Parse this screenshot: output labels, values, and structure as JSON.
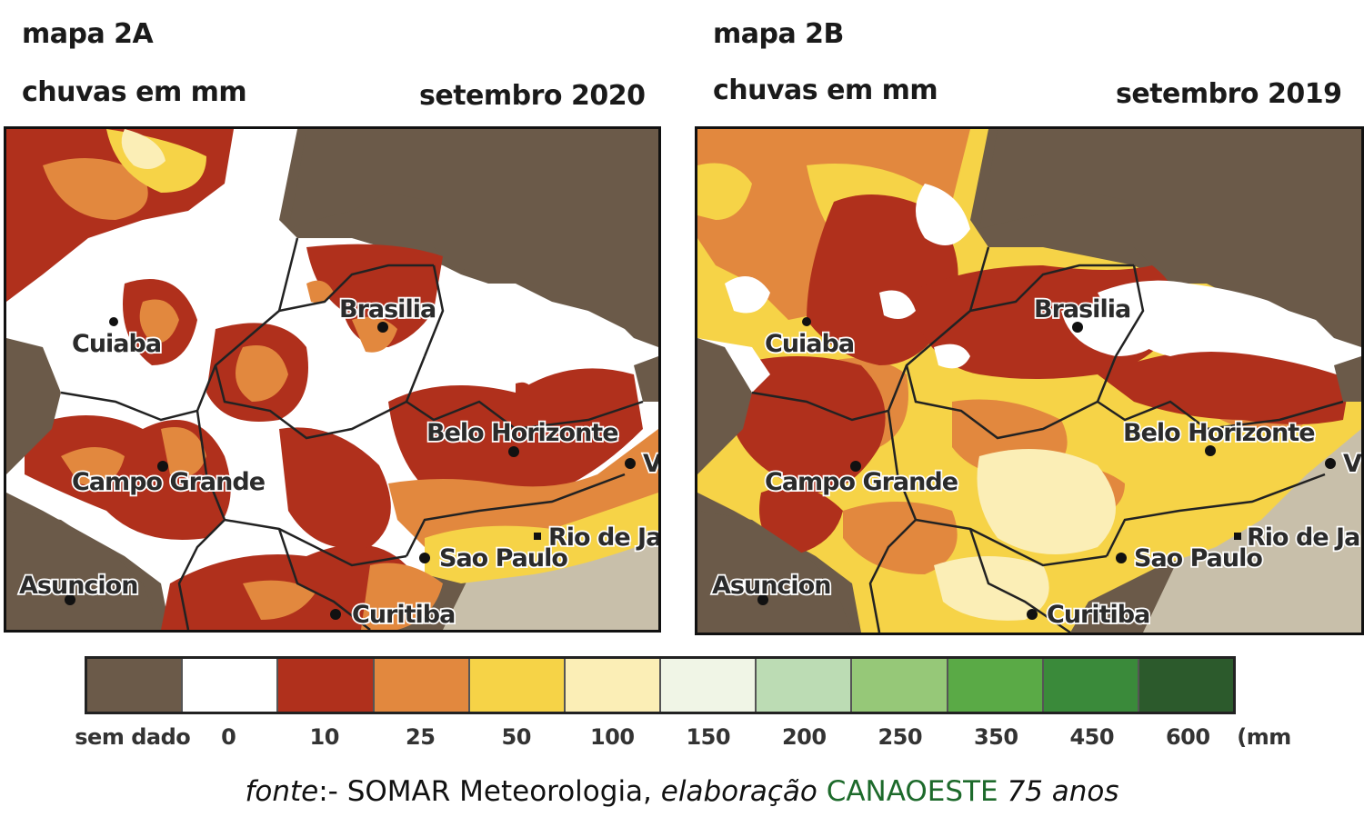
{
  "map_a": {
    "title": "mapa 2A",
    "subtitle": "chuvas em mm",
    "period": "setembro 2020"
  },
  "map_b": {
    "title": "mapa 2B",
    "subtitle": "chuvas em mm",
    "period": "setembro 2019"
  },
  "cities": {
    "cuiaba": "Cuiaba",
    "brasilia": "Brasilia",
    "belo_horizonte": "Belo Horizonte",
    "campo_grande": "Campo Grande",
    "rio": "Rio de Ja",
    "sao_paulo": "Sao Paulo",
    "curitiba": "Curitiba",
    "asuncion": "Asuncion",
    "v": "V"
  },
  "legend": {
    "unit": "(mm",
    "items": [
      {
        "label": "sem dado",
        "color": "#6b5a49"
      },
      {
        "label": "0",
        "color": "#ffffff"
      },
      {
        "label": "10",
        "color": "#b0301c"
      },
      {
        "label": "25",
        "color": "#e2883e"
      },
      {
        "label": "50",
        "color": "#f6d347"
      },
      {
        "label": "100",
        "color": "#fbeeb6"
      },
      {
        "label": "150",
        "color": "#f0f5e6"
      },
      {
        "label": "200",
        "color": "#bcdcb4"
      },
      {
        "label": "250",
        "color": "#96c878"
      },
      {
        "label": "350",
        "color": "#5aaa46"
      },
      {
        "label": "450",
        "color": "#3a8a3a"
      },
      {
        "label": "600",
        "color": "#2c5a2c"
      }
    ]
  },
  "source": {
    "fonte": "fonte",
    "sep": ":- SOMAR Meteorologia, ",
    "elaboracao": "elaboração",
    "org": "CANAOESTE",
    "anos": "75 anos"
  }
}
